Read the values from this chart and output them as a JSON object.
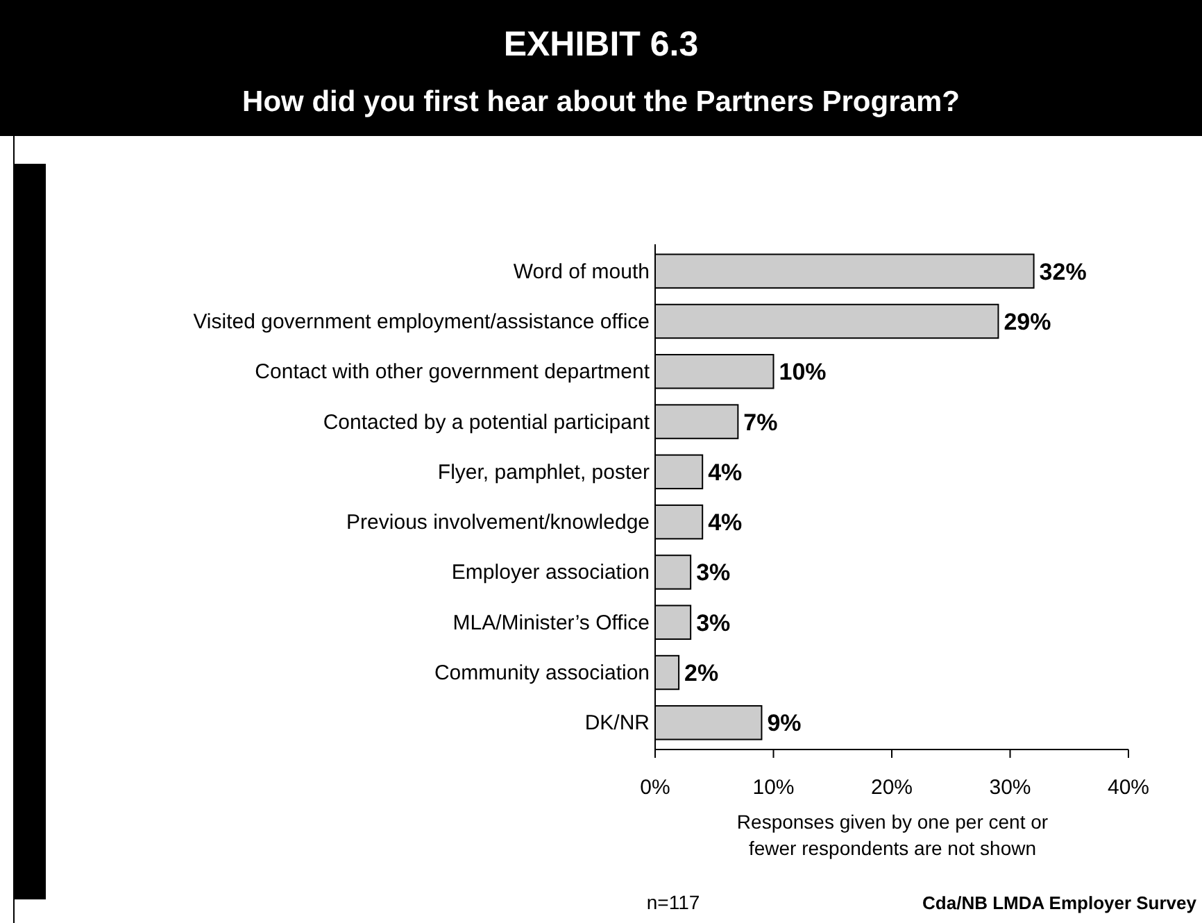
{
  "chart_data": {
    "type": "bar",
    "orientation": "horizontal",
    "title": "EXHIBIT 6.3",
    "subtitle": "How did you first hear about the Partners Program?",
    "categories": [
      "Word of mouth",
      "Visited government employment/assistance office",
      "Contact with other government department",
      "Contacted by a potential participant",
      "Flyer, pamphlet, poster",
      "Previous involvement/knowledge",
      "Employer association",
      "MLA/Minister’s Office",
      "Community association",
      "DK/NR"
    ],
    "values": [
      32,
      29,
      10,
      7,
      4,
      4,
      3,
      3,
      2,
      9
    ],
    "value_labels": [
      "32%",
      "29%",
      "10%",
      "7%",
      "4%",
      "4%",
      "3%",
      "3%",
      "2%",
      "9%"
    ],
    "color": "#cccccc",
    "xlim": [
      0,
      40
    ],
    "xticks": [
      {
        "value": 0,
        "label": "0%"
      },
      {
        "value": 10,
        "label": "10%"
      },
      {
        "value": 20,
        "label": "20%"
      },
      {
        "value": 30,
        "label": "30%"
      },
      {
        "value": 40,
        "label": "40%"
      }
    ],
    "grid": false,
    "annotations": [
      "Responses given by one per cent or fewer respondents are not shown",
      "n=117",
      "Cda/NB LMDA Employer Survey"
    ]
  }
}
